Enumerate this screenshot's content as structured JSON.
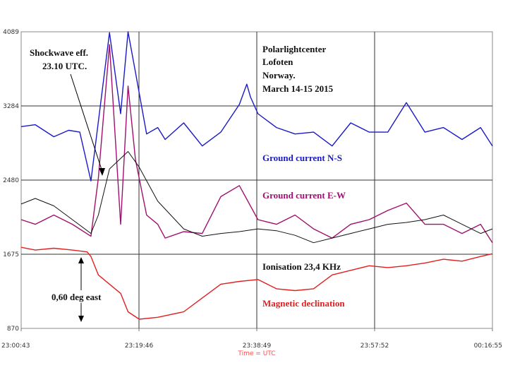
{
  "chart_data": {
    "type": "line",
    "xlabel": "Time = UTC",
    "x_ticks": [
      "23:00:43",
      "23:19:46",
      "23:38:49",
      "23:57:52",
      "00:16:55"
    ],
    "y_ticks": [
      "4089",
      "3284",
      "2480",
      "1675",
      "870"
    ],
    "ylim": [
      870,
      4089
    ],
    "grid": true,
    "series": [
      {
        "name": "Ground current N-S",
        "color": "#1a1ac8",
        "x": [
          23.012,
          23.05,
          23.1,
          23.14,
          23.17,
          23.2,
          23.25,
          23.28,
          23.3,
          23.32,
          23.35,
          23.38,
          23.4,
          23.45,
          23.5,
          23.55,
          23.6,
          23.62,
          23.63,
          23.65,
          23.7,
          23.75,
          23.8,
          23.85,
          23.9,
          23.95,
          24.0,
          24.05,
          24.1,
          24.15,
          24.2,
          24.25,
          24.282
        ],
        "values": [
          3060,
          3080,
          2950,
          3020,
          3000,
          2470,
          4080,
          3200,
          4089,
          3650,
          2980,
          3050,
          2920,
          3100,
          2850,
          3000,
          3300,
          3520,
          3380,
          3200,
          3050,
          2980,
          3000,
          2850,
          3100,
          3000,
          3000,
          3320,
          3000,
          3050,
          2920,
          3050,
          2850
        ]
      },
      {
        "name": "Ground current E-W",
        "color": "#a0106e",
        "x": [
          23.012,
          23.05,
          23.1,
          23.15,
          23.2,
          23.22,
          23.25,
          23.28,
          23.3,
          23.32,
          23.35,
          23.38,
          23.4,
          23.45,
          23.5,
          23.55,
          23.6,
          23.65,
          23.7,
          23.75,
          23.8,
          23.85,
          23.9,
          23.95,
          24.0,
          24.05,
          24.1,
          24.15,
          24.2,
          24.25,
          24.282
        ],
        "values": [
          2050,
          2000,
          2100,
          2000,
          1870,
          2500,
          3950,
          2000,
          3500,
          2700,
          2100,
          2000,
          1850,
          1920,
          1900,
          2300,
          2420,
          2050,
          2000,
          2100,
          1950,
          1850,
          2000,
          2050,
          2150,
          2230,
          2000,
          2000,
          1900,
          2000,
          1800
        ]
      },
      {
        "name": "Ionisation 23,4 KHz",
        "color": "#111111",
        "x": [
          23.012,
          23.05,
          23.1,
          23.15,
          23.2,
          23.22,
          23.25,
          23.3,
          23.33,
          23.38,
          23.45,
          23.5,
          23.55,
          23.6,
          23.65,
          23.7,
          23.75,
          23.8,
          23.85,
          23.9,
          23.95,
          24.0,
          24.05,
          24.1,
          24.15,
          24.2,
          24.25,
          24.282
        ],
        "values": [
          2220,
          2280,
          2200,
          2050,
          1900,
          2100,
          2600,
          2790,
          2620,
          2250,
          1950,
          1870,
          1900,
          1920,
          1950,
          1930,
          1880,
          1800,
          1850,
          1900,
          1950,
          2000,
          2020,
          2050,
          2100,
          2000,
          1900,
          1950
        ]
      },
      {
        "name": "Magnetic declination",
        "color": "#e02020",
        "x": [
          23.012,
          23.05,
          23.1,
          23.15,
          23.19,
          23.2,
          23.22,
          23.25,
          23.28,
          23.3,
          23.33,
          23.38,
          23.45,
          23.5,
          23.55,
          23.6,
          23.65,
          23.7,
          23.75,
          23.8,
          23.85,
          23.9,
          23.95,
          24.0,
          24.05,
          24.1,
          24.15,
          24.2,
          24.25,
          24.282
        ],
        "values": [
          1750,
          1720,
          1740,
          1720,
          1700,
          1650,
          1450,
          1350,
          1250,
          1050,
          970,
          990,
          1050,
          1200,
          1350,
          1380,
          1400,
          1300,
          1280,
          1300,
          1450,
          1500,
          1550,
          1530,
          1550,
          1580,
          1620,
          1600,
          1650,
          1680
        ]
      }
    ]
  },
  "annotations": {
    "title_lines": [
      "Polarlightcenter",
      "Lofoten",
      "Norway.",
      "March 14-15 2015"
    ],
    "shockwave_lines": [
      "Shockwave eff.",
      "23.10 UTC."
    ],
    "offset_label": "0,60 deg east",
    "legend_ns": "Ground current N-S",
    "legend_ew": "Ground current E-W",
    "legend_ion": "Ionisation 23,4 KHz",
    "legend_mag": "Magnetic declination"
  },
  "colors": {
    "grid": "#333333",
    "plot_border": "#888888",
    "annotation_text": "#111111",
    "axis_title": "#ff4d4d"
  }
}
